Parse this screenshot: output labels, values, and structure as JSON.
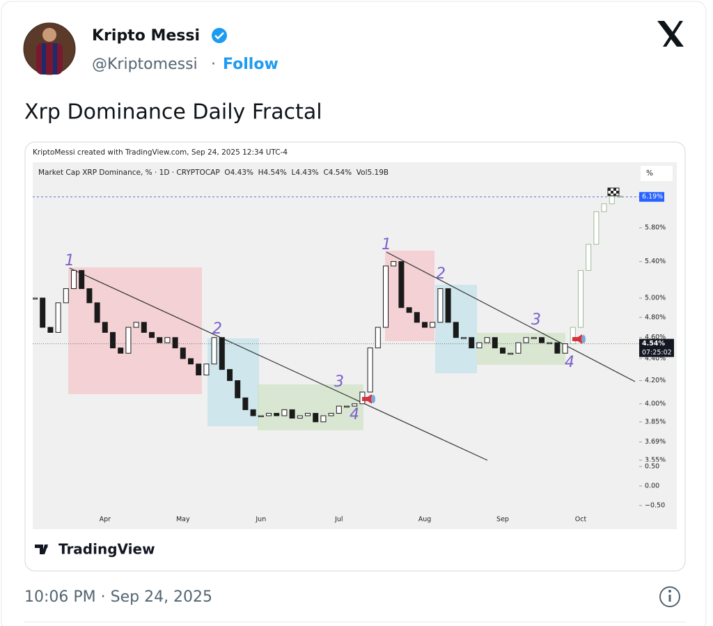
{
  "tweet": {
    "author_name": "Kripto Messi",
    "handle": "@Kriptomessi",
    "separator": "·",
    "follow": "Follow",
    "text": "Xrp Dominance Daily Fractal",
    "timestamp": "10:06 PM · Sep 24, 2025"
  },
  "chart_data": {
    "type": "candlestick",
    "credit": "KriptoMessi created with TradingView.com, Sep 24, 2025 12:34 UTC-4",
    "title": "Market Cap XRP Dominance, % · 1D · CRYPTOCAP  O4.43%  H4.54%  L4.43%  C4.54%  Vol5.19B",
    "scale_button": "%",
    "log_scale": true,
    "ylim": [
      3.55,
      6.64
    ],
    "yticks": [
      {
        "value": 3.55,
        "label": "3.55%"
      },
      {
        "value": 3.69,
        "label": "3.69%"
      },
      {
        "value": 3.85,
        "label": "3.85%"
      },
      {
        "value": 4,
        "label": "4.00%"
      },
      {
        "value": 4.2,
        "label": "4.20%"
      },
      {
        "value": 4.4,
        "label": "4.40%"
      },
      {
        "value": 4.6,
        "label": "4.60%"
      },
      {
        "value": 4.8,
        "label": "4.80%"
      },
      {
        "value": 5,
        "label": "5.00%"
      },
      {
        "value": 5.4,
        "label": "5.40%"
      },
      {
        "value": 5.8,
        "label": "5.80%"
      }
    ],
    "lower_ylim": [
      -0.75,
      0.66
    ],
    "lower_yticks": [
      {
        "value": 0.5,
        "label": "0.50"
      },
      {
        "value": 0,
        "label": "0.00"
      },
      {
        "value": -0.5,
        "label": "−0.50"
      }
    ],
    "last_price": {
      "value": 4.54,
      "label": "4.54%"
    },
    "countdown": "07:25:02",
    "target": {
      "value": 6.19,
      "label": "6.19%"
    },
    "wave_labels": [
      "1",
      "2",
      "3",
      "4",
      "1",
      "2",
      "3",
      "4"
    ],
    "categories": [
      null,
      null,
      null,
      null,
      null,
      null,
      null,
      null,
      null,
      "Apr",
      null,
      null,
      null,
      null,
      null,
      null,
      null,
      null,
      null,
      "May",
      null,
      null,
      null,
      null,
      null,
      null,
      null,
      null,
      null,
      "Jun",
      null,
      null,
      null,
      null,
      null,
      null,
      null,
      null,
      null,
      "Jul",
      null,
      null,
      null,
      null,
      null,
      null,
      null,
      null,
      null,
      null,
      "Aug",
      null,
      null,
      null,
      null,
      null,
      null,
      null,
      null,
      null,
      "Sep",
      null,
      null,
      null,
      null,
      null,
      null,
      null,
      null,
      null,
      "Oct",
      null,
      null,
      null,
      null,
      null
    ],
    "series": [
      {
        "color": "#1a1a1a",
        "values": [
          5.0,
          4.7,
          4.65,
          4.95,
          5.1,
          5.3,
          5.1,
          4.95,
          4.75,
          4.65,
          4.5,
          4.45,
          4.7,
          4.75,
          4.65,
          4.6,
          4.55,
          4.6,
          4.5,
          4.4,
          4.35,
          4.25,
          4.35,
          4.6,
          4.3,
          4.2,
          4.05,
          3.95,
          3.9,
          3.9,
          3.92,
          3.9,
          3.95,
          3.88,
          3.9,
          3.92,
          3.85,
          3.9,
          3.92,
          3.98,
          3.98,
          4.0,
          4.1,
          4.5,
          4.7,
          5.35,
          5.4,
          4.9,
          4.85,
          4.75,
          4.7,
          4.75,
          5.1,
          4.75,
          4.6,
          4.6,
          4.5,
          4.55,
          4.6,
          4.5,
          4.45,
          4.45,
          4.55,
          4.6,
          4.6,
          4.55,
          4.55,
          4.45,
          4.54,
          null,
          null,
          null,
          null,
          null,
          null,
          null
        ]
      },
      {
        "color": "#9db89a",
        "values": [
          null,
          null,
          null,
          null,
          null,
          null,
          null,
          null,
          null,
          null,
          null,
          null,
          null,
          null,
          null,
          null,
          null,
          null,
          null,
          null,
          null,
          null,
          null,
          null,
          null,
          null,
          null,
          null,
          null,
          null,
          null,
          null,
          null,
          null,
          null,
          null,
          null,
          null,
          null,
          null,
          null,
          null,
          null,
          null,
          null,
          null,
          null,
          null,
          null,
          null,
          null,
          null,
          null,
          null,
          null,
          null,
          null,
          null,
          null,
          null,
          null,
          null,
          null,
          null,
          null,
          null,
          null,
          null,
          4.54,
          4.7,
          5.3,
          5.6,
          6.0,
          6.1,
          6.2,
          6.19
        ]
      }
    ]
  },
  "watermark": "TradingView"
}
